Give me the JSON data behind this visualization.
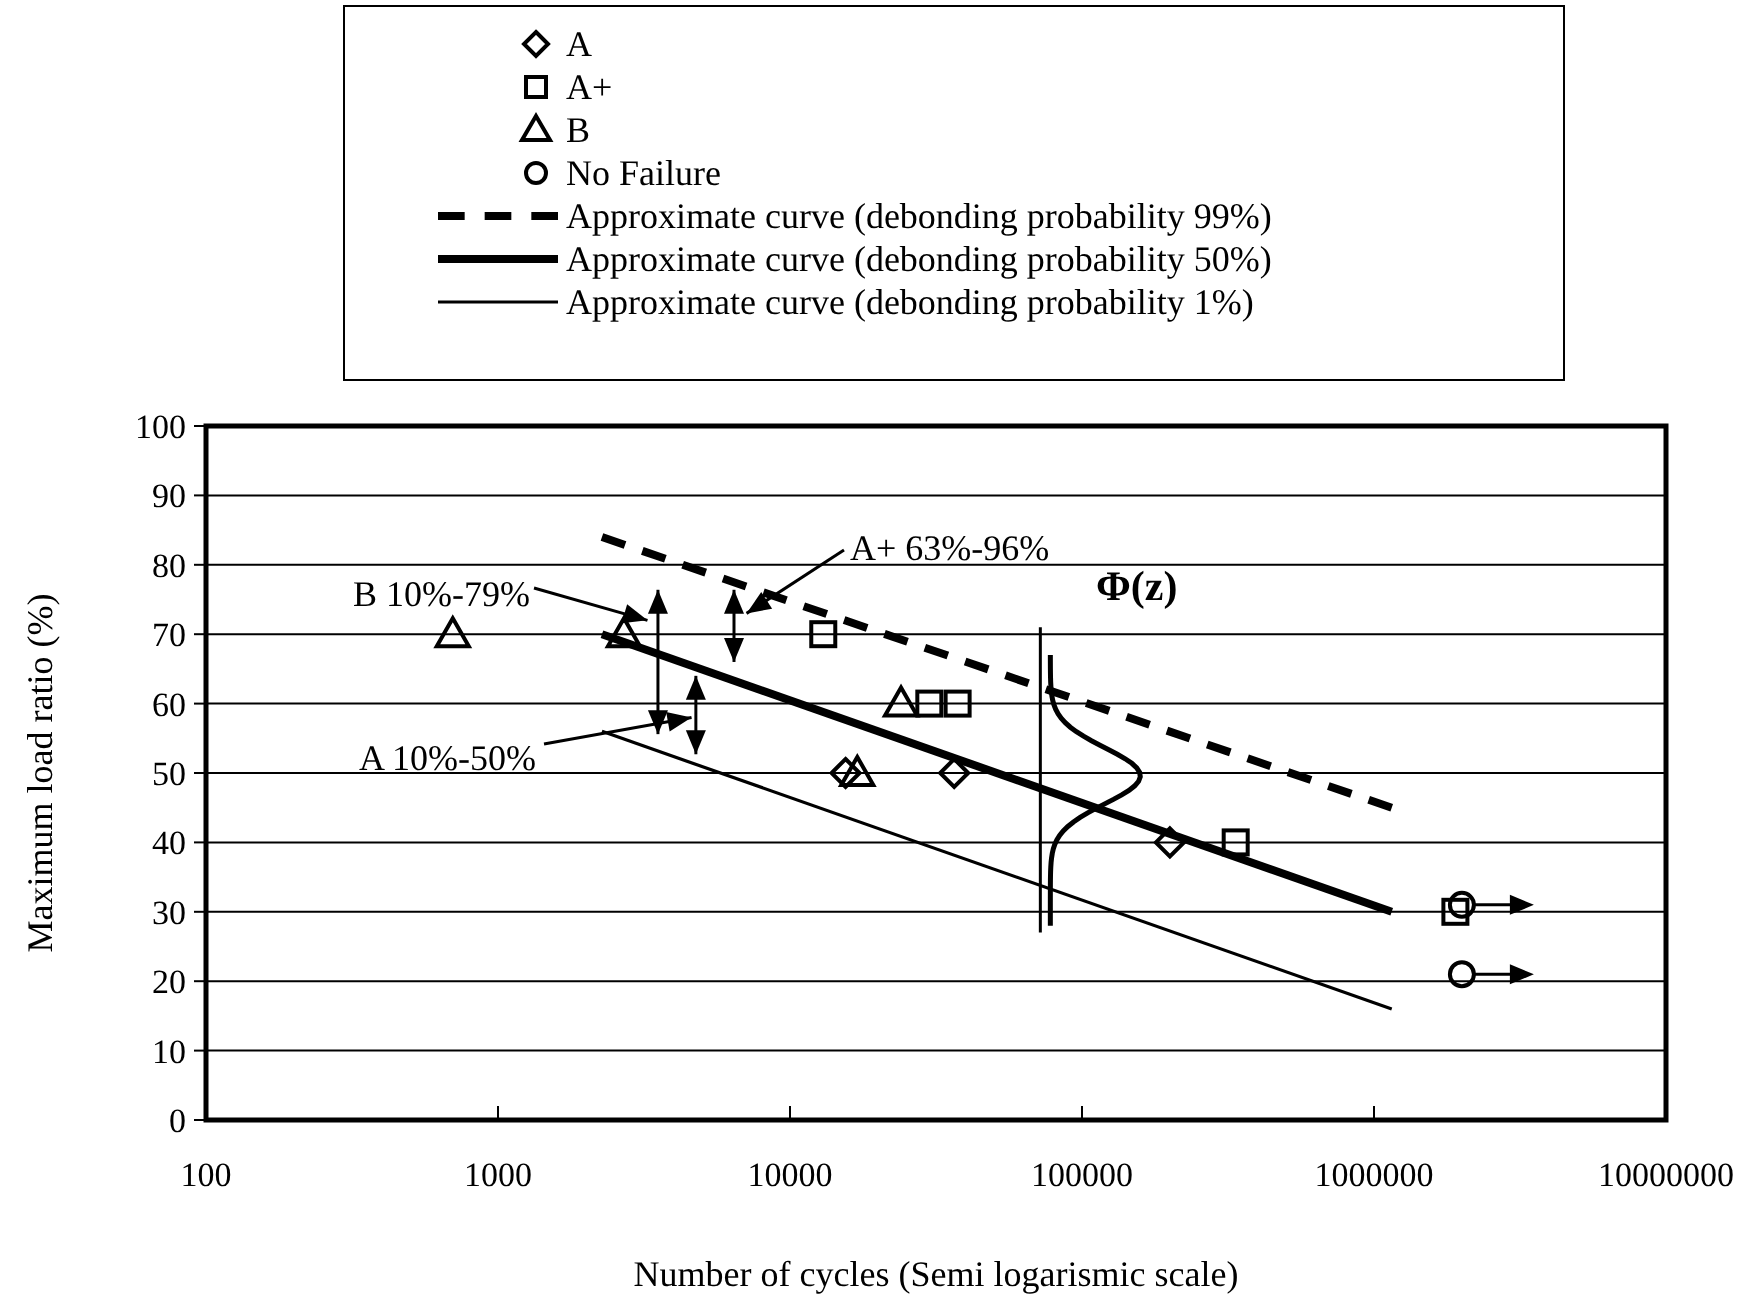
{
  "chart_data": {
    "type": "scatter",
    "xlabel": "Number of cycles (Semi logarismic scale)",
    "ylabel": "Maximum load ratio (%)",
    "log": "x",
    "xlim": [
      100,
      10000000
    ],
    "xticks": [
      100,
      1000,
      10000,
      100000,
      1000000,
      10000000
    ],
    "ylim": [
      0,
      100
    ],
    "yticks": [
      0,
      10,
      20,
      30,
      40,
      50,
      60,
      70,
      80,
      90,
      100
    ],
    "grid": "y",
    "legend": "top",
    "series": [
      {
        "name": "A",
        "color": "#000000",
        "marker": "diamond",
        "x": [
          15500,
          36500,
          200000
        ],
        "values": [
          50,
          50,
          40
        ]
      },
      {
        "name": "A+",
        "color": "#000000",
        "marker": "square",
        "x": [
          13000,
          30000,
          37500,
          336000,
          1900000
        ],
        "values": [
          70,
          60,
          60,
          40,
          30
        ]
      },
      {
        "name": "B",
        "color": "#000000",
        "marker": "triangle",
        "x": [
          700,
          2700,
          24000,
          17000
        ],
        "values": [
          70,
          70,
          60,
          50
        ]
      },
      {
        "name": "No Failure",
        "color": "#000000",
        "marker": "circle",
        "x": [
          2000000,
          2000000
        ],
        "values": [
          31,
          21
        ]
      },
      {
        "name": "Approximate curve (debonding probability 99%)",
        "type": "line",
        "color": "#000000",
        "marker": "none",
        "line_style": "dashed",
        "x": [
          2270,
          1150000
        ],
        "values": [
          84,
          45
        ]
      },
      {
        "name": "Approximate curve (debonding probability 50%)",
        "type": "line",
        "color": "#000000",
        "marker": "none",
        "line_style": "solid",
        "x": [
          2270,
          1150000
        ],
        "values": [
          70,
          30
        ]
      },
      {
        "name": "Approximate curve (debonding probability 1%)",
        "type": "line",
        "color": "#000000",
        "marker": "none",
        "line_style": "solid",
        "x": [
          2270,
          1150000
        ],
        "values": [
          56,
          16
        ]
      }
    ],
    "annotations": [
      "B 10%-79%",
      "A 10%-50%",
      "A+ 63%-96%",
      "Φ(z)"
    ]
  }
}
